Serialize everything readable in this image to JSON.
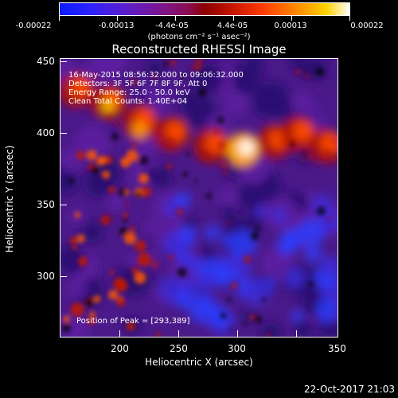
{
  "colorbar": {
    "labels": [
      "-0.00022",
      "-0.00013",
      "-4.4e-05",
      "4.4e-05",
      "0.00013",
      "0.00022"
    ],
    "units": "(photons cm⁻² s⁻¹ asec⁻²)"
  },
  "title": "Reconstructed RHESSI Image",
  "info": {
    "time": "16-May-2015 08:56:32.000 to 09:06:32.000",
    "detectors": "Detectors: 3F 5F 6F 7F 8F 9F, Att 0",
    "energy": "Energy Range: 25.0 - 50.0 keV",
    "clean": "Clean    Total Counts: 1.40E+04",
    "peak": "Position of Peak = [293,389]"
  },
  "axes": {
    "xlabel": "Heliocentric X (arcsec)",
    "ylabel": "Heliocentric Y (arcsec)",
    "xticks": [
      "200",
      "250",
      "300",
      "350"
    ],
    "yticks": [
      "450",
      "400",
      "350",
      "300"
    ],
    "xlim": [
      160,
      350
    ],
    "ylim": [
      256,
      450
    ]
  },
  "timestamp": "22-Oct-2017 21:03",
  "colors": {
    "background": "#000000",
    "foreground": "#ffffff"
  }
}
